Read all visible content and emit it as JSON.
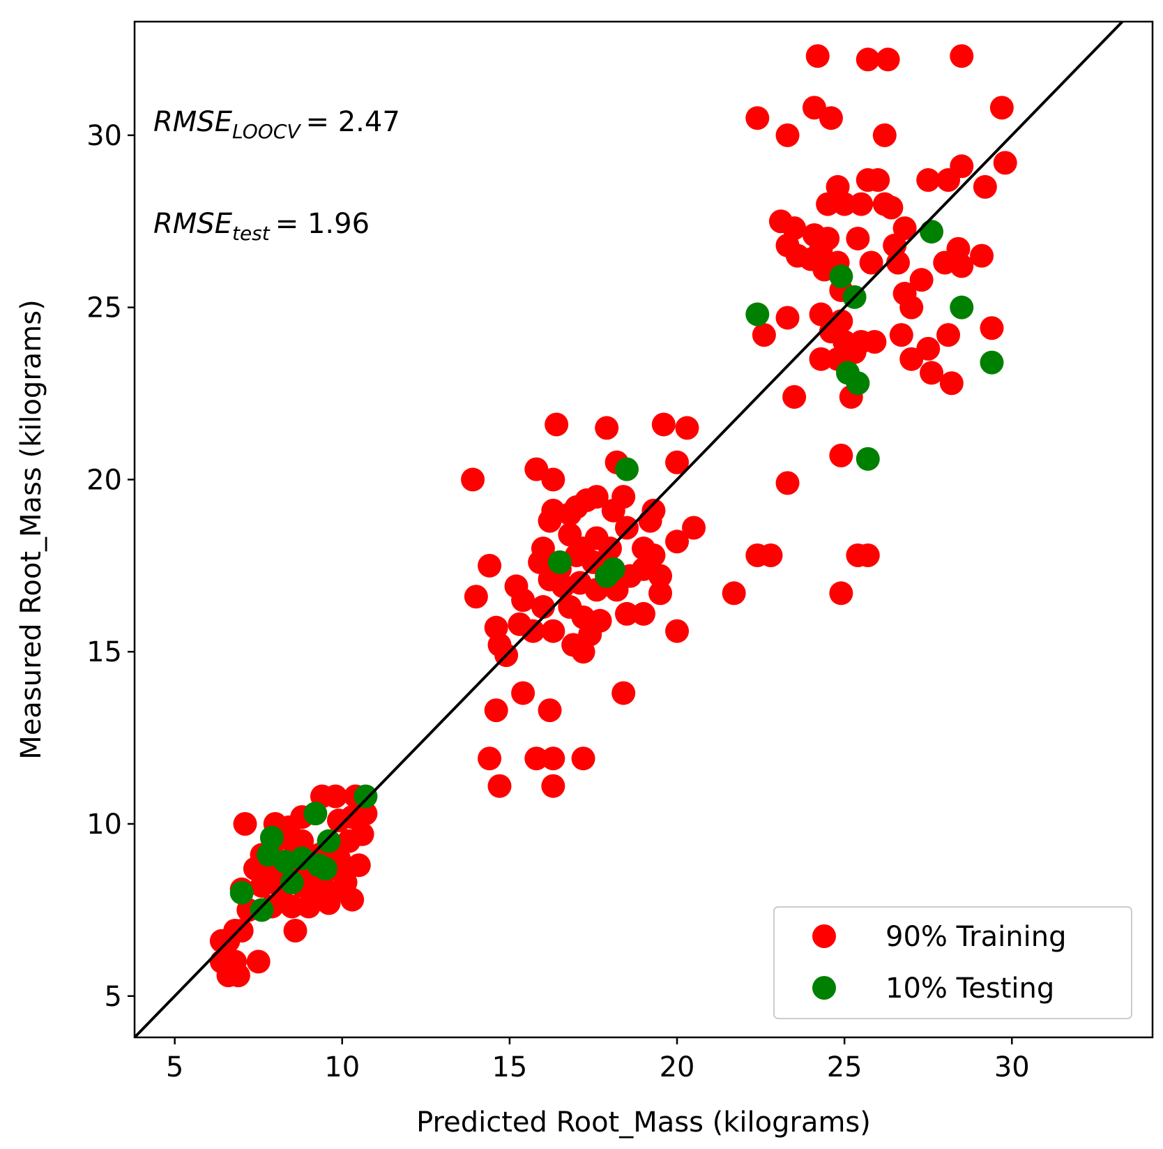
{
  "chart_data": {
    "type": "scatter",
    "xlabel": "Predicted Root_Mass (kilograms)",
    "ylabel": "Measured Root_Mass (kilograms)",
    "xlim": [
      3.8,
      34.2
    ],
    "ylim": [
      3.8,
      33.3
    ],
    "xticks": [
      5,
      10,
      15,
      20,
      25,
      30
    ],
    "yticks": [
      5,
      10,
      15,
      20,
      25,
      30
    ],
    "grid": false,
    "legend_position": "bottom-right",
    "reference_line": "y = x",
    "annotations": [
      {
        "label": "RMSE",
        "subscript": "LOOCV",
        "value": "=  2.47"
      },
      {
        "label": "RMSE",
        "subscript": "test",
        "value": "=  1.96"
      }
    ],
    "colors": {
      "training": "#ff0000",
      "testing": "#008000",
      "line": "#000000"
    },
    "series": [
      {
        "name": "90% Training",
        "color": "#ff0000",
        "points": [
          [
            24.2,
            32.3
          ],
          [
            25.7,
            32.2
          ],
          [
            26.3,
            32.2
          ],
          [
            28.5,
            32.3
          ],
          [
            22.4,
            30.5
          ],
          [
            24.1,
            30.8
          ],
          [
            24.6,
            30.5
          ],
          [
            23.3,
            30.0
          ],
          [
            26.2,
            30.0
          ],
          [
            29.7,
            30.8
          ],
          [
            29.8,
            29.2
          ],
          [
            28.5,
            29.1
          ],
          [
            28.1,
            28.7
          ],
          [
            27.5,
            28.7
          ],
          [
            25.7,
            28.7
          ],
          [
            26.0,
            28.7
          ],
          [
            24.8,
            28.5
          ],
          [
            29.2,
            28.5
          ],
          [
            25.0,
            28.0
          ],
          [
            24.5,
            28.0
          ],
          [
            25.5,
            28.0
          ],
          [
            26.2,
            28.0
          ],
          [
            26.4,
            27.9
          ],
          [
            23.1,
            27.5
          ],
          [
            23.5,
            27.3
          ],
          [
            26.8,
            27.3
          ],
          [
            24.1,
            27.1
          ],
          [
            24.5,
            27.0
          ],
          [
            25.4,
            27.0
          ],
          [
            23.3,
            26.8
          ],
          [
            23.6,
            26.5
          ],
          [
            24.0,
            26.4
          ],
          [
            24.3,
            26.7
          ],
          [
            26.5,
            26.8
          ],
          [
            28.4,
            26.7
          ],
          [
            24.8,
            26.3
          ],
          [
            25.8,
            26.3
          ],
          [
            26.6,
            26.3
          ],
          [
            28.0,
            26.3
          ],
          [
            28.5,
            26.2
          ],
          [
            29.1,
            26.5
          ],
          [
            24.4,
            26.1
          ],
          [
            24.9,
            25.5
          ],
          [
            26.8,
            25.4
          ],
          [
            27.3,
            25.8
          ],
          [
            27.0,
            25.0
          ],
          [
            23.3,
            24.7
          ],
          [
            24.3,
            24.8
          ],
          [
            24.9,
            24.6
          ],
          [
            24.6,
            24.3
          ],
          [
            26.7,
            24.2
          ],
          [
            28.1,
            24.2
          ],
          [
            29.4,
            24.4
          ],
          [
            25.0,
            24.0
          ],
          [
            25.5,
            24.0
          ],
          [
            25.9,
            24.0
          ],
          [
            22.6,
            24.2
          ],
          [
            24.3,
            23.5
          ],
          [
            24.8,
            23.5
          ],
          [
            25.3,
            23.7
          ],
          [
            27.0,
            23.5
          ],
          [
            27.5,
            23.8
          ],
          [
            27.6,
            23.1
          ],
          [
            28.2,
            22.8
          ],
          [
            25.2,
            22.4
          ],
          [
            23.5,
            22.4
          ],
          [
            16.4,
            21.6
          ],
          [
            17.9,
            21.5
          ],
          [
            19.6,
            21.6
          ],
          [
            20.3,
            21.5
          ],
          [
            20.0,
            20.5
          ],
          [
            18.2,
            20.5
          ],
          [
            24.9,
            20.7
          ],
          [
            13.9,
            20.0
          ],
          [
            15.8,
            20.3
          ],
          [
            16.3,
            20.0
          ],
          [
            23.3,
            19.9
          ],
          [
            16.3,
            19.1
          ],
          [
            16.8,
            19.0
          ],
          [
            17.3,
            19.4
          ],
          [
            17.6,
            19.5
          ],
          [
            18.1,
            19.1
          ],
          [
            18.4,
            19.5
          ],
          [
            19.3,
            19.1
          ],
          [
            17.0,
            19.2
          ],
          [
            16.2,
            18.8
          ],
          [
            16.8,
            18.4
          ],
          [
            17.2,
            18.0
          ],
          [
            17.6,
            18.3
          ],
          [
            18.0,
            18.0
          ],
          [
            18.5,
            18.6
          ],
          [
            19.2,
            18.8
          ],
          [
            20.5,
            18.6
          ],
          [
            20.0,
            18.2
          ],
          [
            16.0,
            18.0
          ],
          [
            15.9,
            17.6
          ],
          [
            16.5,
            17.4
          ],
          [
            17.0,
            17.8
          ],
          [
            17.5,
            17.6
          ],
          [
            17.9,
            17.5
          ],
          [
            19.0,
            18.0
          ],
          [
            19.3,
            17.8
          ],
          [
            22.4,
            17.8
          ],
          [
            22.8,
            17.8
          ],
          [
            25.4,
            17.8
          ],
          [
            25.7,
            17.8
          ],
          [
            14.4,
            17.5
          ],
          [
            19.0,
            17.4
          ],
          [
            19.5,
            17.2
          ],
          [
            18.6,
            17.2
          ],
          [
            16.2,
            17.1
          ],
          [
            16.6,
            16.9
          ],
          [
            17.1,
            17.0
          ],
          [
            17.6,
            16.8
          ],
          [
            18.2,
            16.8
          ],
          [
            15.2,
            16.9
          ],
          [
            14.0,
            16.6
          ],
          [
            15.4,
            16.5
          ],
          [
            16.0,
            16.3
          ],
          [
            16.8,
            16.3
          ],
          [
            17.2,
            16.0
          ],
          [
            17.7,
            15.9
          ],
          [
            18.5,
            16.1
          ],
          [
            19.0,
            16.1
          ],
          [
            19.5,
            16.7
          ],
          [
            21.7,
            16.7
          ],
          [
            24.9,
            16.7
          ],
          [
            15.3,
            15.8
          ],
          [
            14.6,
            15.7
          ],
          [
            15.7,
            15.6
          ],
          [
            16.3,
            15.6
          ],
          [
            17.4,
            15.5
          ],
          [
            16.9,
            15.2
          ],
          [
            17.2,
            15.0
          ],
          [
            14.7,
            15.2
          ],
          [
            14.9,
            14.9
          ],
          [
            20.0,
            15.6
          ],
          [
            18.4,
            13.8
          ],
          [
            15.4,
            13.8
          ],
          [
            14.6,
            13.3
          ],
          [
            16.2,
            13.3
          ],
          [
            14.4,
            11.9
          ],
          [
            15.8,
            11.9
          ],
          [
            16.3,
            11.9
          ],
          [
            17.2,
            11.9
          ],
          [
            14.7,
            11.1
          ],
          [
            16.3,
            11.1
          ],
          [
            9.4,
            10.8
          ],
          [
            9.8,
            10.8
          ],
          [
            10.4,
            10.8
          ],
          [
            7.1,
            10.0
          ],
          [
            8.0,
            10.0
          ],
          [
            8.4,
            9.9
          ],
          [
            8.8,
            10.2
          ],
          [
            9.9,
            10.1
          ],
          [
            10.3,
            10.2
          ],
          [
            10.7,
            10.3
          ],
          [
            8.3,
            9.6
          ],
          [
            8.8,
            9.5
          ],
          [
            9.6,
            9.4
          ],
          [
            10.2,
            9.5
          ],
          [
            10.6,
            9.7
          ],
          [
            7.6,
            9.1
          ],
          [
            8.0,
            9.0
          ],
          [
            8.5,
            9.0
          ],
          [
            8.9,
            9.1
          ],
          [
            9.3,
            9.1
          ],
          [
            9.9,
            9.0
          ],
          [
            7.4,
            8.7
          ],
          [
            7.9,
            8.5
          ],
          [
            8.4,
            8.6
          ],
          [
            9.0,
            8.6
          ],
          [
            9.5,
            8.6
          ],
          [
            10.0,
            8.6
          ],
          [
            10.5,
            8.8
          ],
          [
            7.0,
            8.1
          ],
          [
            7.6,
            8.2
          ],
          [
            8.2,
            8.1
          ],
          [
            8.8,
            8.2
          ],
          [
            9.3,
            8.1
          ],
          [
            9.7,
            8.0
          ],
          [
            10.1,
            8.3
          ],
          [
            7.2,
            7.5
          ],
          [
            7.9,
            7.6
          ],
          [
            8.5,
            7.6
          ],
          [
            9.0,
            7.6
          ],
          [
            9.6,
            7.7
          ],
          [
            10.3,
            7.8
          ],
          [
            6.8,
            6.9
          ],
          [
            7.0,
            6.9
          ],
          [
            8.6,
            6.9
          ],
          [
            6.4,
            6.6
          ],
          [
            6.6,
            6.6
          ],
          [
            6.4,
            6.0
          ],
          [
            6.8,
            6.0
          ],
          [
            7.5,
            6.0
          ],
          [
            6.6,
            5.6
          ],
          [
            6.9,
            5.6
          ]
        ]
      },
      {
        "name": "10% Testing",
        "color": "#008000",
        "points": [
          [
            27.6,
            27.2
          ],
          [
            24.9,
            25.9
          ],
          [
            25.3,
            25.3
          ],
          [
            22.4,
            24.8
          ],
          [
            28.5,
            25.0
          ],
          [
            29.4,
            23.4
          ],
          [
            25.1,
            23.1
          ],
          [
            25.4,
            22.8
          ],
          [
            25.7,
            20.6
          ],
          [
            18.5,
            20.3
          ],
          [
            16.5,
            17.6
          ],
          [
            17.9,
            17.2
          ],
          [
            18.1,
            17.4
          ],
          [
            10.7,
            10.8
          ],
          [
            9.2,
            10.3
          ],
          [
            7.9,
            9.6
          ],
          [
            9.6,
            9.5
          ],
          [
            7.8,
            9.1
          ],
          [
            8.3,
            8.9
          ],
          [
            8.8,
            9.0
          ],
          [
            9.3,
            8.8
          ],
          [
            9.5,
            8.7
          ],
          [
            8.5,
            8.3
          ],
          [
            7.0,
            8.0
          ],
          [
            7.6,
            7.5
          ]
        ]
      }
    ]
  }
}
